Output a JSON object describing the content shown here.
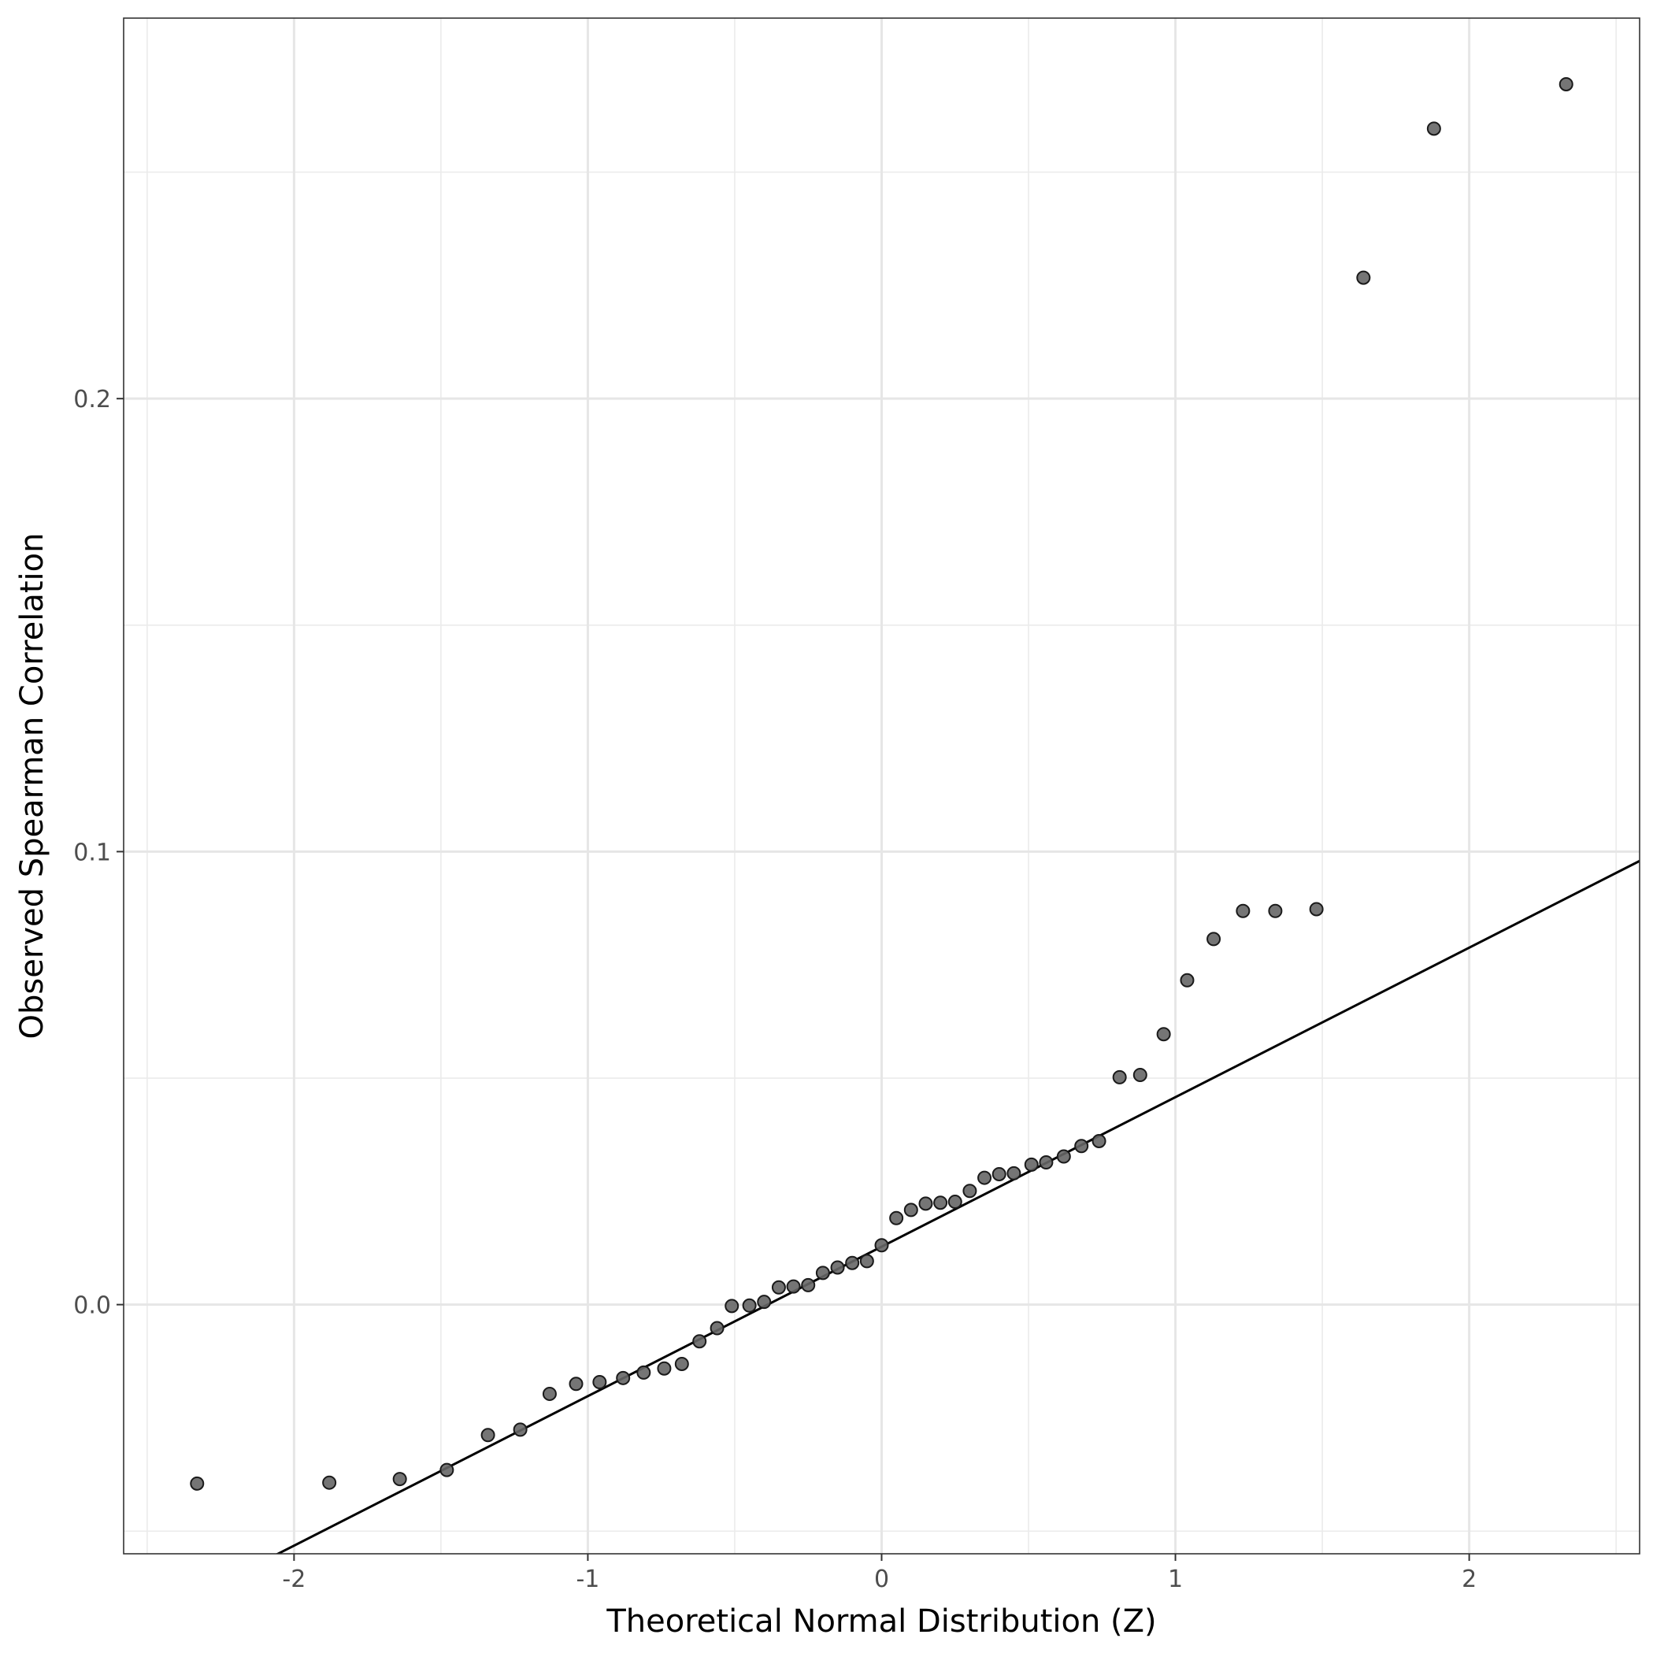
{
  "chart_data": {
    "type": "scatter",
    "title": "",
    "xlabel": "Theoretical Normal Distribution (Z)",
    "ylabel": "Observed Spearman Correlation",
    "xlim": [
      -2.58,
      2.58
    ],
    "ylim": [
      -0.055,
      0.284
    ],
    "x_major_ticks": [
      -2,
      -1,
      0,
      1,
      2
    ],
    "x_tick_labels": [
      "-2",
      "-1",
      "0",
      "1",
      "2"
    ],
    "x_minor_ticks": [
      -2.5,
      -1.5,
      -0.5,
      0.5,
      1.5,
      2.5
    ],
    "y_major_ticks": [
      0.0,
      0.1,
      0.2
    ],
    "y_tick_labels": [
      "0.0",
      "0.1",
      "0.2"
    ],
    "y_minor_ticks": [
      -0.05,
      0.05,
      0.15,
      0.25
    ],
    "grid": true,
    "legend": "none",
    "point_color": "#666666",
    "point_stroke": "#1a1a1a",
    "reference_line": {
      "intercept": 0.0128,
      "slope": 0.033,
      "color": "#000000"
    },
    "x": [
      -2.33,
      -1.88,
      -1.64,
      -1.48,
      -1.34,
      -1.23,
      -1.13,
      -1.04,
      -0.96,
      -0.88,
      -0.81,
      -0.74,
      -0.68,
      -0.62,
      -0.56,
      -0.51,
      -0.45,
      -0.4,
      -0.35,
      -0.3,
      -0.25,
      -0.2,
      -0.15,
      -0.1,
      -0.05,
      0.0,
      0.05,
      0.1,
      0.15,
      0.2,
      0.25,
      0.3,
      0.35,
      0.4,
      0.45,
      0.51,
      0.56,
      0.62,
      0.68,
      0.74,
      0.81,
      0.88,
      0.96,
      1.04,
      1.13,
      1.23,
      1.34,
      1.48,
      1.64,
      1.88,
      2.33
    ],
    "y": [
      -0.0395,
      -0.0393,
      -0.0385,
      -0.0365,
      -0.0288,
      -0.0276,
      -0.0197,
      -0.0175,
      -0.0171,
      -0.0162,
      -0.015,
      -0.0141,
      -0.0131,
      -0.0081,
      -0.0052,
      -0.0003,
      -0.0002,
      0.0006,
      0.0038,
      0.004,
      0.0043,
      0.007,
      0.0082,
      0.0092,
      0.0096,
      0.0131,
      0.0191,
      0.0209,
      0.0223,
      0.0225,
      0.0227,
      0.0251,
      0.028,
      0.0288,
      0.029,
      0.0309,
      0.0314,
      0.0327,
      0.035,
      0.0361,
      0.0502,
      0.0507,
      0.0597,
      0.0716,
      0.0807,
      0.0869,
      0.0869,
      0.0873,
      0.2267,
      0.2596,
      0.2694
    ]
  }
}
